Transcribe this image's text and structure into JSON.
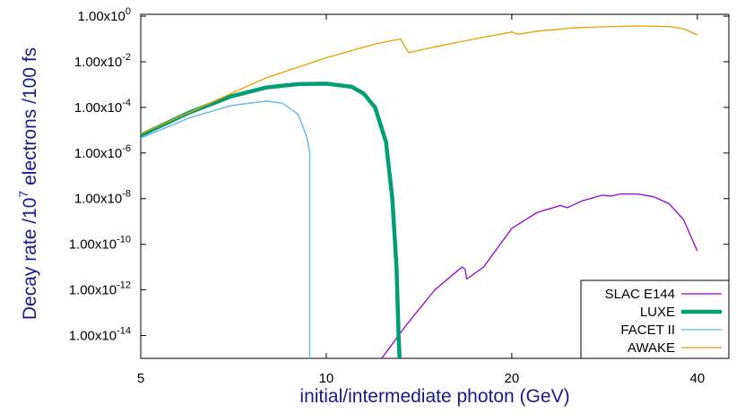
{
  "chart_data": {
    "type": "line",
    "xlabel": "initial/intermediate photon (GeV)",
    "ylabel_prefix": "Decay rate /10",
    "ylabel_sup": "7",
    "ylabel_suffix": " electrons /100 fs",
    "x_scale": "log",
    "y_scale": "log",
    "xlim": [
      5,
      45
    ],
    "ylim": [
      1e-15,
      1.2
    ],
    "x_ticks": [
      {
        "value": 5,
        "label": "5"
      },
      {
        "value": 10,
        "label": "10"
      },
      {
        "value": 20,
        "label": "20"
      },
      {
        "value": 40,
        "label": "40"
      }
    ],
    "y_ticks": [
      {
        "value": 1.0,
        "mant": "1.00x10",
        "exp": "0"
      },
      {
        "value": 0.01,
        "mant": "1.00x10",
        "exp": "-2"
      },
      {
        "value": 0.0001,
        "mant": "1.00x10",
        "exp": "-4"
      },
      {
        "value": 1e-06,
        "mant": "1.00x10",
        "exp": "-6"
      },
      {
        "value": 1e-08,
        "mant": "1.00x10",
        "exp": "-8"
      },
      {
        "value": 1e-10,
        "mant": "1.00x10",
        "exp": "-10"
      },
      {
        "value": 1e-12,
        "mant": "1.00x10",
        "exp": "-12"
      },
      {
        "value": 1e-14,
        "mant": "1.00x10",
        "exp": "-14"
      }
    ],
    "grid": false,
    "legend_position": "bottom-right",
    "series": [
      {
        "name": "SLAC E144",
        "color": "#9400d3",
        "width": 1.3,
        "points": [
          [
            12.3,
            1e-15
          ],
          [
            13.5,
            3e-14
          ],
          [
            15,
            1e-12
          ],
          [
            16.6,
            1e-11
          ],
          [
            16.8,
            8e-12
          ],
          [
            16.9,
            3e-12
          ],
          [
            18,
            1e-11
          ],
          [
            20,
            5e-10
          ],
          [
            22,
            2.5e-09
          ],
          [
            24,
            5e-09
          ],
          [
            24.6,
            4e-09
          ],
          [
            26,
            8e-09
          ],
          [
            28,
            1.4e-08
          ],
          [
            29,
            1.3e-08
          ],
          [
            30,
            1.6e-08
          ],
          [
            32,
            1.6e-08
          ],
          [
            34,
            1.2e-08
          ],
          [
            36,
            6e-09
          ],
          [
            38,
            1.2e-09
          ],
          [
            40,
            5e-11
          ]
        ]
      },
      {
        "name": "LUXE",
        "color": "#009e73",
        "width": 4.5,
        "points": [
          [
            5,
            6e-06
          ],
          [
            6,
            6e-05
          ],
          [
            7,
            0.0003
          ],
          [
            8,
            0.00075
          ],
          [
            9,
            0.00105
          ],
          [
            10,
            0.0011
          ],
          [
            11,
            0.0008
          ],
          [
            11.5,
            0.0004
          ],
          [
            12,
            0.0001
          ],
          [
            12.5,
            3e-06
          ],
          [
            12.8,
            1e-08
          ],
          [
            13,
            1e-11
          ],
          [
            13.1,
            1e-14
          ],
          [
            13.15,
            1e-15
          ]
        ]
      },
      {
        "name": "FACET II",
        "color": "#56b4e9",
        "width": 1.3,
        "points": [
          [
            5,
            4.5e-06
          ],
          [
            6,
            3.5e-05
          ],
          [
            7,
            0.00012
          ],
          [
            8,
            0.00019
          ],
          [
            8.5,
            0.00015
          ],
          [
            9,
            5e-05
          ],
          [
            9.3,
            5e-06
          ],
          [
            9.4,
            1e-06
          ],
          [
            9.4,
            1e-15
          ]
        ]
      },
      {
        "name": "AWAKE",
        "color": "#e69f00",
        "width": 1.3,
        "points": [
          [
            5,
            7e-06
          ],
          [
            6,
            6e-05
          ],
          [
            7,
            0.0004
          ],
          [
            8,
            0.002
          ],
          [
            10,
            0.015
          ],
          [
            12,
            0.06
          ],
          [
            13.2,
            0.1
          ],
          [
            13.6,
            0.025
          ],
          [
            15,
            0.045
          ],
          [
            18,
            0.12
          ],
          [
            20,
            0.2
          ],
          [
            20.5,
            0.16
          ],
          [
            22,
            0.22
          ],
          [
            25,
            0.3
          ],
          [
            28,
            0.34
          ],
          [
            32,
            0.37
          ],
          [
            36,
            0.35
          ],
          [
            38,
            0.28
          ],
          [
            40,
            0.15
          ]
        ]
      }
    ]
  }
}
